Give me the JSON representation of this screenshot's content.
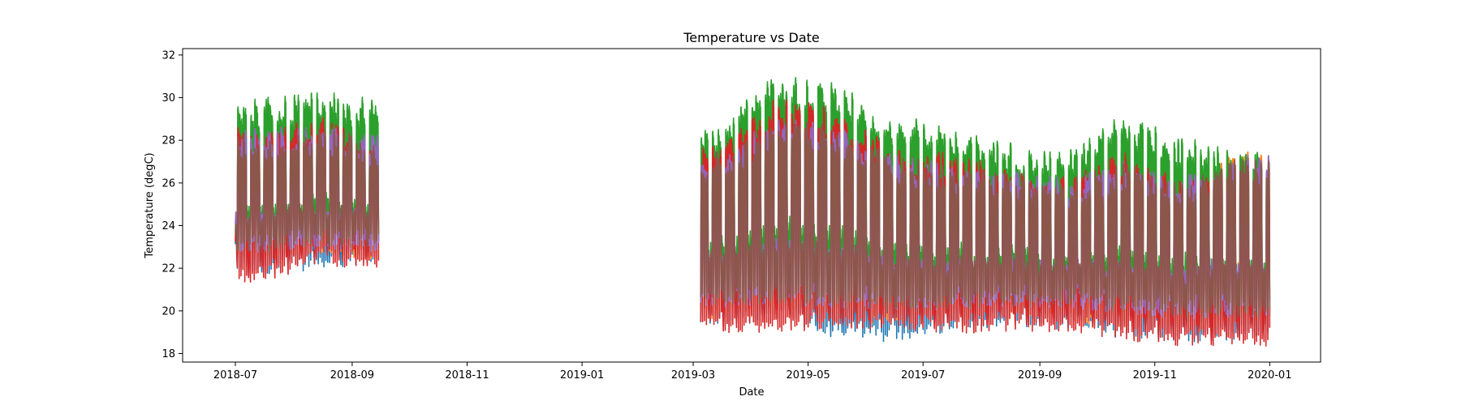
{
  "chart_data": {
    "type": "line",
    "title": "Temperature vs Date",
    "xlabel": "Date",
    "ylabel": "Temperature (degC)",
    "x_type": "date",
    "xlim": [
      "2018-06-03",
      "2020-01-28"
    ],
    "ylim": [
      17.6,
      32.3
    ],
    "x_ticks": [
      "2018-07-01",
      "2018-09-01",
      "2018-11-01",
      "2019-01-01",
      "2019-03-01",
      "2019-05-01",
      "2019-07-01",
      "2019-09-01",
      "2019-11-01",
      "2020-01-01"
    ],
    "x_tick_labels": [
      "2018-07",
      "2018-09",
      "2018-11",
      "2019-01",
      "2019-03",
      "2019-05",
      "2019-07",
      "2019-09",
      "2019-11",
      "2020-01"
    ],
    "y_ticks": [
      18,
      20,
      22,
      24,
      26,
      28,
      30,
      32
    ],
    "y_tick_labels": [
      "18",
      "20",
      "22",
      "24",
      "26",
      "28",
      "30",
      "32"
    ],
    "grid": false,
    "legend": "none",
    "segments": [
      {
        "start": "2018-07-01",
        "end": "2018-09-14"
      },
      {
        "start": "2019-03-05",
        "end": "2019-12-31"
      }
    ],
    "series": [
      {
        "color": "#1f77b4",
        "daily_points": [
          [
            "2018-07-15",
            28.2,
            22.0
          ],
          [
            "2018-08-15",
            28.3,
            22.2
          ],
          [
            "2018-09-10",
            28.0,
            22.5
          ],
          [
            "2019-03-15",
            27.0,
            19.5
          ],
          [
            "2019-04-15",
            28.8,
            19.8
          ],
          [
            "2019-05-15",
            28.5,
            19.0
          ],
          [
            "2019-06-15",
            27.0,
            18.8
          ],
          [
            "2019-07-15",
            26.5,
            19.3
          ],
          [
            "2019-08-15",
            26.0,
            19.6
          ],
          [
            "2019-09-15",
            25.5,
            19.3
          ],
          [
            "2019-10-15",
            27.0,
            19.0
          ],
          [
            "2019-11-15",
            25.8,
            18.8
          ],
          [
            "2019-12-15",
            25.5,
            18.9
          ]
        ]
      },
      {
        "color": "#ff7f0e",
        "daily_points": [
          [
            "2018-07-15",
            28.1,
            22.6
          ],
          [
            "2018-08-15",
            28.4,
            22.8
          ],
          [
            "2018-09-12",
            27.6,
            22.6
          ],
          [
            "2019-03-15",
            27.0,
            19.8
          ],
          [
            "2019-04-15",
            28.5,
            20.0
          ],
          [
            "2019-05-15",
            28.2,
            19.8
          ],
          [
            "2019-06-15",
            26.8,
            19.6
          ],
          [
            "2019-07-15",
            26.4,
            19.8
          ],
          [
            "2019-08-15",
            25.8,
            19.9
          ],
          [
            "2019-09-15",
            25.5,
            19.8
          ],
          [
            "2019-10-15",
            26.5,
            19.4
          ],
          [
            "2019-11-15",
            25.5,
            19.2
          ],
          [
            "2019-12-15",
            26.8,
            19.4
          ]
        ]
      },
      {
        "color": "#2ca02c",
        "daily_points": [
          [
            "2018-07-15",
            29.3,
            22.8
          ],
          [
            "2018-08-15",
            29.6,
            23.2
          ],
          [
            "2018-09-10",
            29.3,
            23.0
          ],
          [
            "2019-03-15",
            28.3,
            20.5
          ],
          [
            "2019-04-15",
            30.5,
            21.0
          ],
          [
            "2019-05-15",
            30.0,
            20.8
          ],
          [
            "2019-06-15",
            28.5,
            20.3
          ],
          [
            "2019-07-15",
            28.0,
            20.3
          ],
          [
            "2019-08-15",
            27.2,
            20.5
          ],
          [
            "2019-09-15",
            26.8,
            20.4
          ],
          [
            "2019-10-15",
            28.6,
            20.0
          ],
          [
            "2019-11-15",
            27.5,
            19.7
          ],
          [
            "2019-12-15",
            27.2,
            19.8
          ]
        ]
      },
      {
        "color": "#d62728",
        "daily_points": [
          [
            "2018-07-15",
            28.0,
            21.6
          ],
          [
            "2018-08-15",
            28.6,
            22.4
          ],
          [
            "2018-09-10",
            27.5,
            22.2
          ],
          [
            "2019-03-15",
            27.0,
            19.2
          ],
          [
            "2019-04-15",
            29.5,
            19.3
          ],
          [
            "2019-05-15",
            28.8,
            19.4
          ],
          [
            "2019-06-15",
            27.0,
            19.3
          ],
          [
            "2019-07-15",
            26.8,
            19.2
          ],
          [
            "2019-08-15",
            26.0,
            19.3
          ],
          [
            "2019-09-15",
            25.6,
            19.3
          ],
          [
            "2019-10-15",
            26.8,
            18.9
          ],
          [
            "2019-11-15",
            25.5,
            18.6
          ],
          [
            "2019-12-15",
            26.0,
            18.6
          ]
        ]
      },
      {
        "color": "#9467bd",
        "daily_points": [
          [
            "2018-07-15",
            27.9,
            23.0
          ],
          [
            "2018-08-15",
            28.0,
            23.2
          ],
          [
            "2018-09-10",
            27.6,
            23.0
          ],
          [
            "2019-03-15",
            26.8,
            20.4
          ],
          [
            "2019-04-15",
            28.4,
            20.6
          ],
          [
            "2019-05-15",
            28.1,
            20.4
          ],
          [
            "2019-06-15",
            26.7,
            20.2
          ],
          [
            "2019-07-15",
            26.3,
            20.3
          ],
          [
            "2019-08-15",
            25.9,
            20.5
          ],
          [
            "2019-09-15",
            25.6,
            20.4
          ],
          [
            "2019-10-15",
            26.4,
            20.1
          ],
          [
            "2019-11-15",
            25.6,
            19.9
          ],
          [
            "2019-12-15",
            26.6,
            19.9
          ]
        ]
      },
      {
        "color": "#8c564b",
        "daily_points": [
          [
            "2018-07-15",
            27.8,
            23.0
          ],
          [
            "2018-08-15",
            28.0,
            23.3
          ],
          [
            "2018-09-10",
            27.5,
            23.2
          ],
          [
            "2019-03-15",
            26.8,
            20.5
          ],
          [
            "2019-04-15",
            28.3,
            20.6
          ],
          [
            "2019-05-15",
            28.0,
            20.4
          ],
          [
            "2019-06-15",
            26.6,
            20.2
          ],
          [
            "2019-07-15",
            26.2,
            20.3
          ],
          [
            "2019-08-15",
            25.8,
            20.5
          ],
          [
            "2019-09-15",
            25.5,
            20.4
          ],
          [
            "2019-10-15",
            26.3,
            20.1
          ],
          [
            "2019-11-15",
            25.5,
            19.9
          ],
          [
            "2019-12-15",
            26.5,
            19.9
          ]
        ]
      }
    ]
  }
}
